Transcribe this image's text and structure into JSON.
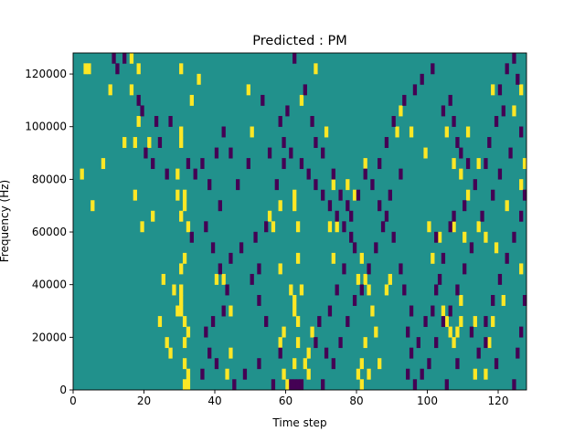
{
  "chart_data": {
    "type": "heatmap",
    "title": "Predicted : PM",
    "xlabel": "Time step",
    "ylabel": "Frequency (Hz)",
    "xlim": [
      0,
      128
    ],
    "ylim": [
      0,
      128000
    ],
    "xticks": [
      0,
      20,
      40,
      60,
      80,
      100,
      120
    ],
    "yticks": [
      0,
      20000,
      40000,
      60000,
      80000,
      100000,
      120000
    ],
    "colors": {
      "background": "#21918c",
      "high": "#fde725",
      "low": "#440154"
    },
    "high_cells": [
      [
        3,
        120000
      ],
      [
        4,
        120000
      ],
      [
        10,
        112000
      ],
      [
        16,
        124000
      ],
      [
        16,
        112000
      ],
      [
        18,
        120000
      ],
      [
        30,
        120000
      ],
      [
        35,
        116000
      ],
      [
        8,
        84000
      ],
      [
        2,
        80000
      ],
      [
        5,
        68000
      ],
      [
        14,
        92000
      ],
      [
        17,
        92000
      ],
      [
        21,
        92000
      ],
      [
        30,
        92000
      ],
      [
        30,
        96000
      ],
      [
        29,
        80000
      ],
      [
        29,
        72000
      ],
      [
        31,
        72000
      ],
      [
        31,
        68000
      ],
      [
        32,
        60000
      ],
      [
        30,
        64000
      ],
      [
        31,
        48000
      ],
      [
        30,
        44000
      ],
      [
        30,
        36000
      ],
      [
        30,
        32000
      ],
      [
        30,
        28000
      ],
      [
        31,
        24000
      ],
      [
        32,
        20000
      ],
      [
        31,
        16000
      ],
      [
        31,
        8000
      ],
      [
        32,
        4000
      ],
      [
        31,
        0
      ],
      [
        32,
        0
      ],
      [
        29,
        28000
      ],
      [
        28,
        36000
      ],
      [
        27,
        12000
      ],
      [
        26,
        16000
      ],
      [
        24,
        24000
      ],
      [
        25,
        40000
      ],
      [
        19,
        60000
      ],
      [
        17,
        72000
      ],
      [
        22,
        64000
      ],
      [
        18,
        100000
      ],
      [
        33,
        108000
      ],
      [
        49,
        112000
      ],
      [
        50,
        96000
      ],
      [
        40,
        40000
      ],
      [
        44,
        28000
      ],
      [
        44,
        12000
      ],
      [
        43,
        4000
      ],
      [
        42,
        40000
      ],
      [
        55,
        64000
      ],
      [
        58,
        68000
      ],
      [
        56,
        60000
      ],
      [
        58,
        44000
      ],
      [
        59,
        20000
      ],
      [
        58,
        16000
      ],
      [
        59,
        4000
      ],
      [
        60,
        0
      ],
      [
        62,
        8000
      ],
      [
        61,
        36000
      ],
      [
        62,
        28000
      ],
      [
        63,
        24000
      ],
      [
        62,
        32000
      ],
      [
        63,
        48000
      ],
      [
        64,
        36000
      ],
      [
        63,
        16000
      ],
      [
        65,
        8000
      ],
      [
        66,
        12000
      ],
      [
        67,
        20000
      ],
      [
        66,
        4000
      ],
      [
        62,
        68000
      ],
      [
        62,
        72000
      ],
      [
        63,
        60000
      ],
      [
        68,
        120000
      ],
      [
        64,
        108000
      ],
      [
        71,
        96000
      ],
      [
        72,
        60000
      ],
      [
        73,
        48000
      ],
      [
        74,
        60000
      ],
      [
        73,
        76000
      ],
      [
        77,
        76000
      ],
      [
        79,
        72000
      ],
      [
        82,
        84000
      ],
      [
        80,
        40000
      ],
      [
        81,
        48000
      ],
      [
        82,
        40000
      ],
      [
        83,
        36000
      ],
      [
        84,
        28000
      ],
      [
        85,
        20000
      ],
      [
        82,
        16000
      ],
      [
        81,
        8000
      ],
      [
        80,
        4000
      ],
      [
        81,
        0
      ],
      [
        83,
        4000
      ],
      [
        86,
        8000
      ],
      [
        88,
        36000
      ],
      [
        89,
        40000
      ],
      [
        91,
        96000
      ],
      [
        92,
        104000
      ],
      [
        95,
        96000
      ],
      [
        99,
        88000
      ],
      [
        105,
        96000
      ],
      [
        107,
        84000
      ],
      [
        104,
        28000
      ],
      [
        105,
        24000
      ],
      [
        106,
        20000
      ],
      [
        107,
        16000
      ],
      [
        108,
        20000
      ],
      [
        109,
        24000
      ],
      [
        109,
        32000
      ],
      [
        110,
        56000
      ],
      [
        103,
        56000
      ],
      [
        101,
        48000
      ],
      [
        107,
        60000
      ],
      [
        100,
        60000
      ],
      [
        109,
        80000
      ],
      [
        111,
        72000
      ],
      [
        114,
        60000
      ],
      [
        116,
        56000
      ],
      [
        113,
        24000
      ],
      [
        117,
        16000
      ],
      [
        118,
        24000
      ],
      [
        121,
        32000
      ],
      [
        126,
        44000
      ],
      [
        113,
        4000
      ],
      [
        116,
        4000
      ],
      [
        119,
        52000
      ],
      [
        122,
        68000
      ],
      [
        126,
        76000
      ],
      [
        127,
        84000
      ],
      [
        124,
        104000
      ],
      [
        118,
        112000
      ],
      [
        126,
        112000
      ],
      [
        114,
        84000
      ],
      [
        111,
        96000
      ]
    ],
    "low_cells": [
      [
        11,
        124000
      ],
      [
        12,
        120000
      ],
      [
        14,
        124000
      ],
      [
        18,
        108000
      ],
      [
        19,
        104000
      ],
      [
        23,
        100000
      ],
      [
        24,
        92000
      ],
      [
        27,
        100000
      ],
      [
        20,
        88000
      ],
      [
        22,
        84000
      ],
      [
        26,
        80000
      ],
      [
        32,
        84000
      ],
      [
        34,
        80000
      ],
      [
        36,
        84000
      ],
      [
        38,
        76000
      ],
      [
        40,
        88000
      ],
      [
        42,
        96000
      ],
      [
        44,
        88000
      ],
      [
        46,
        76000
      ],
      [
        49,
        84000
      ],
      [
        41,
        68000
      ],
      [
        37,
        60000
      ],
      [
        33,
        56000
      ],
      [
        39,
        52000
      ],
      [
        41,
        44000
      ],
      [
        44,
        48000
      ],
      [
        47,
        52000
      ],
      [
        43,
        36000
      ],
      [
        42,
        28000
      ],
      [
        39,
        24000
      ],
      [
        37,
        20000
      ],
      [
        38,
        12000
      ],
      [
        36,
        4000
      ],
      [
        40,
        8000
      ],
      [
        45,
        0
      ],
      [
        48,
        4000
      ],
      [
        52,
        8000
      ],
      [
        56,
        0
      ],
      [
        58,
        12000
      ],
      [
        54,
        24000
      ],
      [
        52,
        32000
      ],
      [
        50,
        40000
      ],
      [
        52,
        44000
      ],
      [
        51,
        56000
      ],
      [
        54,
        60000
      ],
      [
        57,
        76000
      ],
      [
        59,
        84000
      ],
      [
        55,
        88000
      ],
      [
        53,
        108000
      ],
      [
        58,
        100000
      ],
      [
        60,
        104000
      ],
      [
        62,
        124000
      ],
      [
        65,
        112000
      ],
      [
        67,
        100000
      ],
      [
        68,
        92000
      ],
      [
        70,
        88000
      ],
      [
        73,
        80000
      ],
      [
        75,
        72000
      ],
      [
        77,
        68000
      ],
      [
        78,
        56000
      ],
      [
        79,
        52000
      ],
      [
        76,
        44000
      ],
      [
        74,
        36000
      ],
      [
        72,
        28000
      ],
      [
        69,
        24000
      ],
      [
        68,
        16000
      ],
      [
        71,
        12000
      ],
      [
        70,
        0
      ],
      [
        73,
        8000
      ],
      [
        75,
        16000
      ],
      [
        77,
        24000
      ],
      [
        79,
        32000
      ],
      [
        81,
        36000
      ],
      [
        83,
        44000
      ],
      [
        85,
        52000
      ],
      [
        87,
        60000
      ],
      [
        88,
        64000
      ],
      [
        90,
        56000
      ],
      [
        92,
        44000
      ],
      [
        93,
        36000
      ],
      [
        95,
        28000
      ],
      [
        94,
        20000
      ],
      [
        95,
        12000
      ],
      [
        94,
        4000
      ],
      [
        96,
        0
      ],
      [
        97,
        16000
      ],
      [
        99,
        24000
      ],
      [
        101,
        28000
      ],
      [
        102,
        36000
      ],
      [
        103,
        40000
      ],
      [
        104,
        48000
      ],
      [
        102,
        56000
      ],
      [
        106,
        60000
      ],
      [
        107,
        64000
      ],
      [
        110,
        68000
      ],
      [
        113,
        76000
      ],
      [
        116,
        84000
      ],
      [
        117,
        92000
      ],
      [
        119,
        100000
      ],
      [
        121,
        104000
      ],
      [
        120,
        112000
      ],
      [
        122,
        120000
      ],
      [
        124,
        124000
      ],
      [
        125,
        116000
      ],
      [
        126,
        96000
      ],
      [
        123,
        88000
      ],
      [
        120,
        80000
      ],
      [
        118,
        72000
      ],
      [
        115,
        64000
      ],
      [
        112,
        52000
      ],
      [
        110,
        44000
      ],
      [
        108,
        36000
      ],
      [
        106,
        28000
      ],
      [
        104,
        24000
      ],
      [
        102,
        16000
      ],
      [
        100,
        8000
      ],
      [
        98,
        4000
      ],
      [
        114,
        12000
      ],
      [
        116,
        24000
      ],
      [
        118,
        32000
      ],
      [
        120,
        40000
      ],
      [
        122,
        48000
      ],
      [
        124,
        56000
      ],
      [
        126,
        64000
      ],
      [
        127,
        72000
      ],
      [
        127,
        32000
      ],
      [
        126,
        20000
      ],
      [
        125,
        12000
      ],
      [
        124,
        0
      ],
      [
        119,
        8000
      ],
      [
        116,
        16000
      ],
      [
        112,
        20000
      ],
      [
        108,
        8000
      ],
      [
        105,
        0
      ],
      [
        62,
        0
      ],
      [
        63,
        0
      ],
      [
        64,
        0
      ],
      [
        61,
        0
      ],
      [
        86,
        84000
      ],
      [
        88,
        92000
      ],
      [
        90,
        100000
      ],
      [
        93,
        108000
      ],
      [
        96,
        112000
      ],
      [
        98,
        116000
      ],
      [
        101,
        120000
      ],
      [
        104,
        104000
      ],
      [
        106,
        108000
      ],
      [
        107,
        100000
      ],
      [
        108,
        92000
      ],
      [
        109,
        88000
      ],
      [
        111,
        84000
      ],
      [
        92,
        80000
      ],
      [
        89,
        72000
      ],
      [
        86,
        68000
      ],
      [
        84,
        76000
      ],
      [
        82,
        80000
      ],
      [
        80,
        72000
      ],
      [
        78,
        64000
      ],
      [
        76,
        60000
      ],
      [
        74,
        64000
      ],
      [
        72,
        68000
      ],
      [
        70,
        72000
      ],
      [
        68,
        76000
      ],
      [
        66,
        80000
      ],
      [
        64,
        84000
      ],
      [
        61,
        88000
      ],
      [
        59,
        92000
      ]
    ]
  }
}
